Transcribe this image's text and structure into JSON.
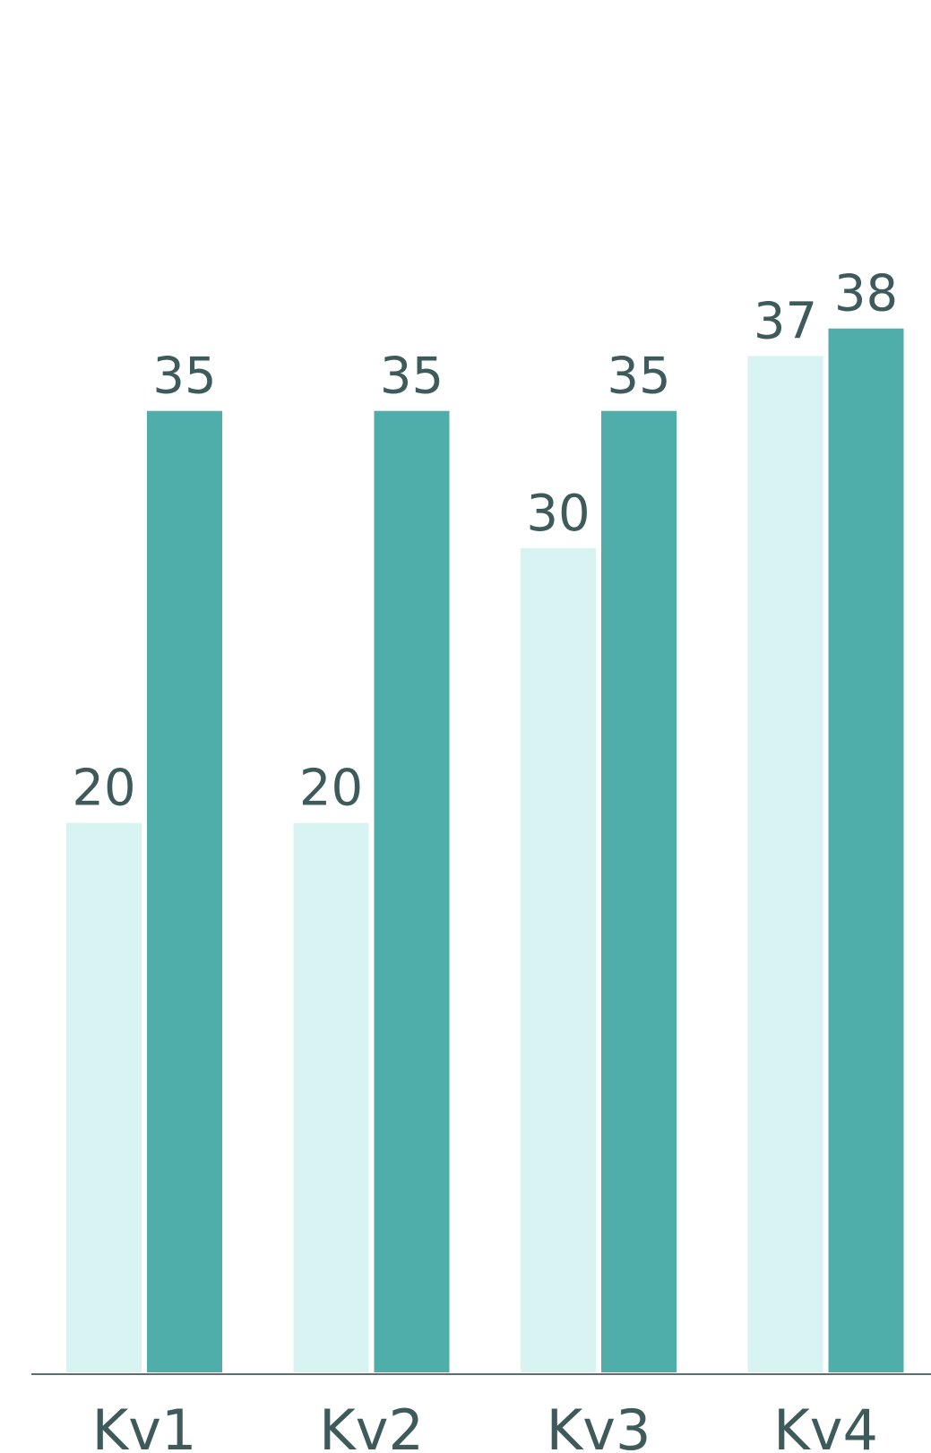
{
  "chart_data": {
    "type": "bar",
    "categories": [
      "Kv1",
      "Kv2",
      "Kv3",
      "Kv4"
    ],
    "series": [
      {
        "values": [
          20,
          20,
          30,
          37
        ],
        "color": "#d7f4f2"
      },
      {
        "values": [
          35,
          35,
          35,
          38
        ],
        "color": "#50aeaa"
      }
    ],
    "ylim": [
      0,
      48
    ],
    "grid": false,
    "legend": "none",
    "value_labels": true,
    "text_color": "#3e5a5a",
    "axis_color": "#5d6e6e"
  }
}
